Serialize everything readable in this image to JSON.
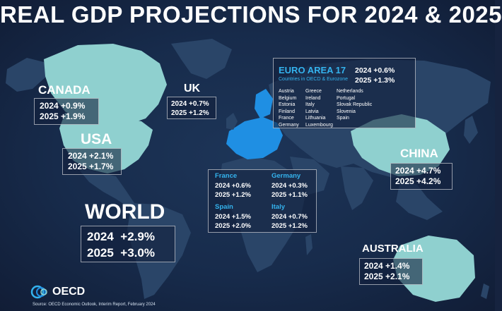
{
  "title": "REAL GDP PROJECTIONS FOR 2024 & 2025",
  "colors": {
    "highlight": "#8fd0cf",
    "euro": "#1f8fe3",
    "land": "#2a4568",
    "background": "#172b4b",
    "accent": "#34b3ee"
  },
  "regions": {
    "canada": {
      "name": "CANADA",
      "rows": [
        "2024 +0.9%",
        "2025 +1.9%"
      ]
    },
    "usa": {
      "name": "USA",
      "rows": [
        "2024 +2.1%",
        "2025 +1.7%"
      ]
    },
    "uk": {
      "name": "UK",
      "rows": [
        "2024 +0.7%",
        "2025 +1.2%"
      ]
    },
    "china": {
      "name": "CHINA",
      "rows": [
        "2024 +4.7%",
        "2025 +4.2%"
      ]
    },
    "australia": {
      "name": "AUSTRALIA",
      "rows": [
        "2024 +1.4%",
        "2025 +2.1%"
      ]
    },
    "world": {
      "name": "WORLD",
      "rows": [
        "2024  +2.9%",
        "2025  +3.0%"
      ]
    }
  },
  "euro_area": {
    "name": "EURO AREA 17",
    "subtitle": "Countries in OECD & Eurozone",
    "rows": [
      "2024 +0.6%",
      "2025 +1.3%"
    ],
    "countries_col1": [
      "Austria",
      "Belgium",
      "Estonia",
      "Finland",
      "France",
      "Germany"
    ],
    "countries_col2": [
      "Greece",
      "Ireland",
      "Italy",
      "Latvia",
      "Lithuania",
      "Luxembourg"
    ],
    "countries_col3": [
      "Netherlands",
      "Portugal",
      "Slovak Republic",
      "Slovenia",
      "Spain"
    ]
  },
  "europe_detail": {
    "france": {
      "name": "France",
      "rows": [
        "2024 +0.6%",
        "2025 +1.2%"
      ]
    },
    "germany": {
      "name": "Germany",
      "rows": [
        "2024 +0.3%",
        "2025 +1.1%"
      ]
    },
    "spain": {
      "name": "Spain",
      "rows": [
        "2024 +1.5%",
        "2025 +2.0%"
      ]
    },
    "italy": {
      "name": "Italy",
      "rows": [
        "2024 +0.7%",
        "2025 +1.2%"
      ]
    }
  },
  "logo": {
    "text": "OECD"
  },
  "source": "Source: OECD Economic Outlook, Interim Report, February 2024"
}
